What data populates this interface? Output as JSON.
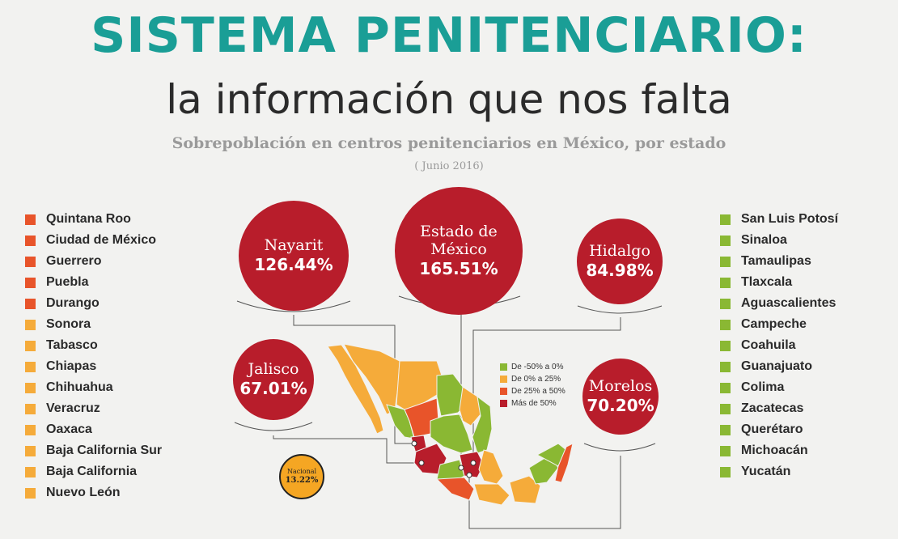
{
  "header": {
    "title": "SISTEMA PENITENCIARIO:",
    "subtitle": "la información que nos falta",
    "caption": "Sobrepoblación en centros penitenciarios en México, por estado",
    "date": "( Junio 2016)"
  },
  "colors": {
    "range_neg50_0": "#8ab833",
    "range_0_25": "#f5ab3a",
    "range_25_50": "#e8542a",
    "range_over50": "#b81d2b",
    "title": "#1a9e96"
  },
  "left_states": [
    {
      "name": "Quintana Roo",
      "range": "range_25_50"
    },
    {
      "name": "Ciudad de México",
      "range": "range_25_50"
    },
    {
      "name": "Guerrero",
      "range": "range_25_50"
    },
    {
      "name": "Puebla",
      "range": "range_25_50"
    },
    {
      "name": "Durango",
      "range": "range_25_50"
    },
    {
      "name": "Sonora",
      "range": "range_0_25"
    },
    {
      "name": "Tabasco",
      "range": "range_0_25"
    },
    {
      "name": "Chiapas",
      "range": "range_0_25"
    },
    {
      "name": "Chihuahua",
      "range": "range_0_25"
    },
    {
      "name": "Veracruz",
      "range": "range_0_25"
    },
    {
      "name": "Oaxaca",
      "range": "range_0_25"
    },
    {
      "name": "Baja California Sur",
      "range": "range_0_25"
    },
    {
      "name": "Baja California",
      "range": "range_0_25"
    },
    {
      "name": "Nuevo León",
      "range": "range_0_25"
    }
  ],
  "right_states": [
    {
      "name": "San Luis Potosí",
      "range": "range_neg50_0"
    },
    {
      "name": "Sinaloa",
      "range": "range_neg50_0"
    },
    {
      "name": "Tamaulipas",
      "range": "range_neg50_0"
    },
    {
      "name": "Tlaxcala",
      "range": "range_neg50_0"
    },
    {
      "name": "Aguascalientes",
      "range": "range_neg50_0"
    },
    {
      "name": "Campeche",
      "range": "range_neg50_0"
    },
    {
      "name": "Coahuila",
      "range": "range_neg50_0"
    },
    {
      "name": "Guanajuato",
      "range": "range_neg50_0"
    },
    {
      "name": "Colima",
      "range": "range_neg50_0"
    },
    {
      "name": "Zacatecas",
      "range": "range_neg50_0"
    },
    {
      "name": "Querétaro",
      "range": "range_neg50_0"
    },
    {
      "name": "Michoacán",
      "range": "range_neg50_0"
    },
    {
      "name": "Yucatán",
      "range": "range_neg50_0"
    }
  ],
  "highlights": {
    "nayarit": {
      "name": "Nayarit",
      "value": "126.44%"
    },
    "edomex": {
      "name_line1": "Estado de",
      "name_line2": "México",
      "value": "165.51%"
    },
    "hidalgo": {
      "name": "Hidalgo",
      "value": "84.98%"
    },
    "jalisco": {
      "name": "Jalisco",
      "value": "67.01%"
    },
    "morelos": {
      "name": "Morelos",
      "value": "70.20%"
    }
  },
  "legend": [
    {
      "label": "De -50% a 0%",
      "range": "range_neg50_0"
    },
    {
      "label": "De 0% a 25%",
      "range": "range_0_25"
    },
    {
      "label": "De 25% a 50%",
      "range": "range_25_50"
    },
    {
      "label": "Más de 50%",
      "range": "range_over50"
    }
  ],
  "national": {
    "label": "Nacional",
    "value": "13.22%"
  }
}
